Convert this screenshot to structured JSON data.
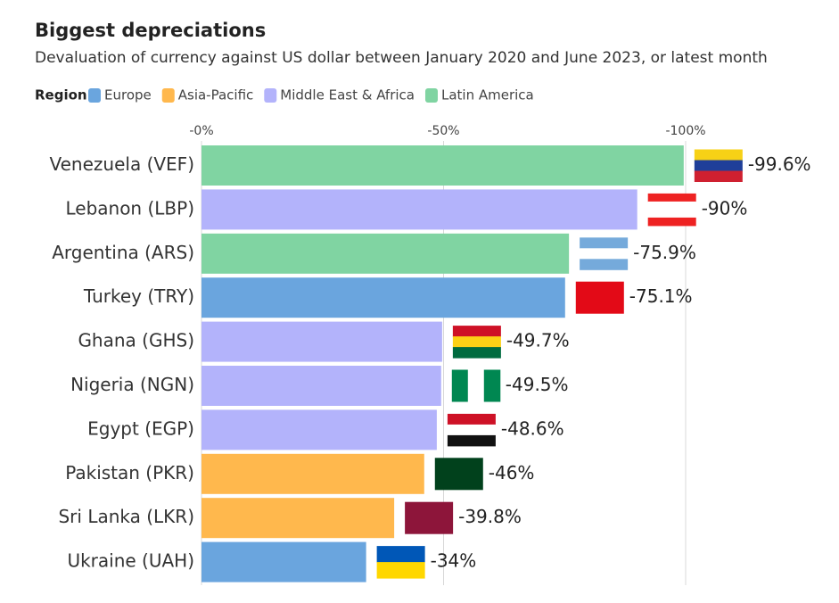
{
  "chart_data": {
    "type": "bar",
    "orientation": "horizontal",
    "title": "Biggest depreciations",
    "subtitle": "Devaluation of currency against US dollar between January 2020 and June 2023, or latest month",
    "legend_title": "Region",
    "categories": [
      "Venezuela (VEF)",
      "Lebanon (LBP)",
      "Argentina (ARS)",
      "Turkey (TRY)",
      "Ghana (GHS)",
      "Nigeria (NGN)",
      "Egypt (EGP)",
      "Pakistan (PKR)",
      "Sri Lanka (LKR)",
      "Ukraine (UAH)"
    ],
    "series": [
      {
        "name": "Europe",
        "color": "#6aa5de",
        "values": [
          null,
          null,
          null,
          -75.1,
          null,
          null,
          null,
          null,
          null,
          -34
        ],
        "value_labels": [
          null,
          null,
          null,
          "-75.1%",
          null,
          null,
          null,
          null,
          null,
          "-34%"
        ]
      },
      {
        "name": "Asia-Pacific",
        "color": "#ffb84d",
        "values": [
          null,
          null,
          null,
          null,
          null,
          null,
          null,
          -46,
          -39.8,
          null
        ],
        "value_labels": [
          null,
          null,
          null,
          null,
          null,
          null,
          null,
          "-46%",
          "-39.8%",
          null
        ]
      },
      {
        "name": "Middle East & Africa",
        "color": "#b3b3fb",
        "values": [
          null,
          -90,
          null,
          null,
          -49.7,
          -49.5,
          -48.6,
          null,
          null,
          null
        ],
        "value_labels": [
          null,
          "-90%",
          null,
          null,
          "-49.7%",
          "-49.5%",
          "-48.6%",
          null,
          null,
          null
        ]
      },
      {
        "name": "Latin America",
        "color": "#80d4a2",
        "values": [
          -99.6,
          null,
          -75.9,
          null,
          null,
          null,
          null,
          null,
          null,
          null
        ],
        "value_labels": [
          "-99.6%",
          null,
          "-75.9%",
          null,
          null,
          null,
          null,
          null,
          null,
          null
        ]
      }
    ],
    "xlim": [
      0,
      -100
    ],
    "xticks": [
      {
        "value": 0,
        "label": "-0%"
      },
      {
        "value": -50,
        "label": "-50%"
      },
      {
        "value": -100,
        "label": "-100%"
      }
    ],
    "grid": true
  }
}
